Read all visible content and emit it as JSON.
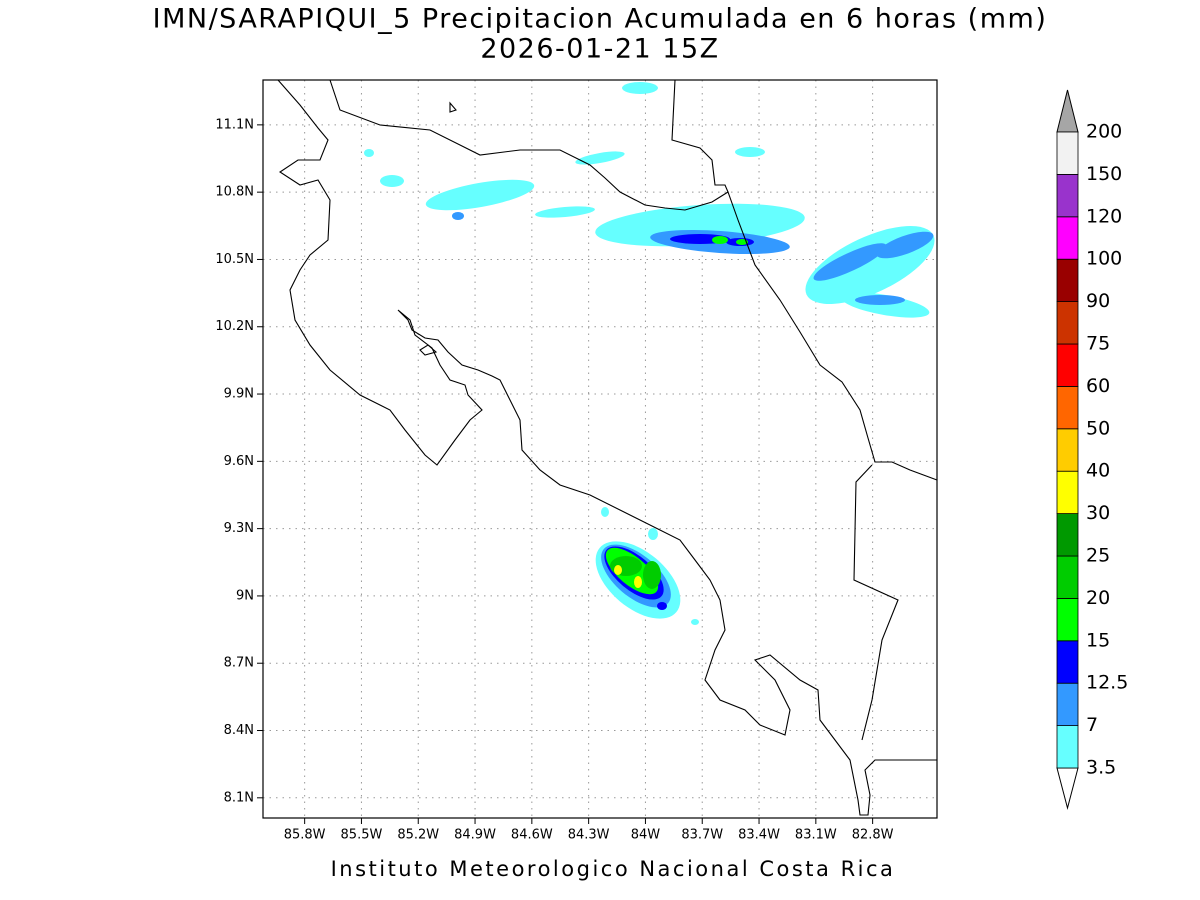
{
  "map": {
    "title": "IMN/SARAPIQUI_5 Precipitacion Acumulada en 6 horas (mm)",
    "subtitle": "2026-01-21 15Z",
    "footer": "Instituto Meteorologico Nacional Costa Rica",
    "xlim": [
      -86.02,
      -82.46
    ],
    "ylim": [
      8.01,
      11.3
    ],
    "xticks": [
      {
        "value": -85.8,
        "label": "85.8W"
      },
      {
        "value": -85.5,
        "label": "85.5W"
      },
      {
        "value": -85.2,
        "label": "85.2W"
      },
      {
        "value": -84.9,
        "label": "84.9W"
      },
      {
        "value": -84.6,
        "label": "84.6W"
      },
      {
        "value": -84.3,
        "label": "84.3W"
      },
      {
        "value": -84,
        "label": "84W"
      },
      {
        "value": -83.7,
        "label": "83.7W"
      },
      {
        "value": -83.4,
        "label": "83.4W"
      },
      {
        "value": -83.1,
        "label": "83.1W"
      },
      {
        "value": -82.8,
        "label": "82.8W"
      }
    ],
    "yticks": [
      {
        "value": 11.1,
        "label": "11.1N"
      },
      {
        "value": 10.8,
        "label": "10.8N"
      },
      {
        "value": 10.5,
        "label": "10.5N"
      },
      {
        "value": 10.2,
        "label": "10.2N"
      },
      {
        "value": 9.9,
        "label": "9.9N"
      },
      {
        "value": 9.6,
        "label": "9.6N"
      },
      {
        "value": 9.3,
        "label": "9.3N"
      },
      {
        "value": 9,
        "label": "9N"
      },
      {
        "value": 8.7,
        "label": "8.7N"
      },
      {
        "value": 8.4,
        "label": "8.4N"
      },
      {
        "value": 8.1,
        "label": "8.1N"
      }
    ],
    "grid": true
  },
  "colorbar": {
    "levels": [
      3.5,
      7,
      12.5,
      15,
      20,
      25,
      30,
      40,
      50,
      60,
      75,
      90,
      100,
      120,
      150,
      200
    ],
    "colors": [
      "#66ffff",
      "#3399ff",
      "#0000ff",
      "#00ff00",
      "#00cc00",
      "#009900",
      "#ffff00",
      "#ffcc00",
      "#ff6600",
      "#ff0000",
      "#cc3300",
      "#990000",
      "#ff00ff",
      "#9933cc",
      "#f2f2f2"
    ],
    "under_color": "#ffffff",
    "over_color": "#a6a6a6"
  }
}
